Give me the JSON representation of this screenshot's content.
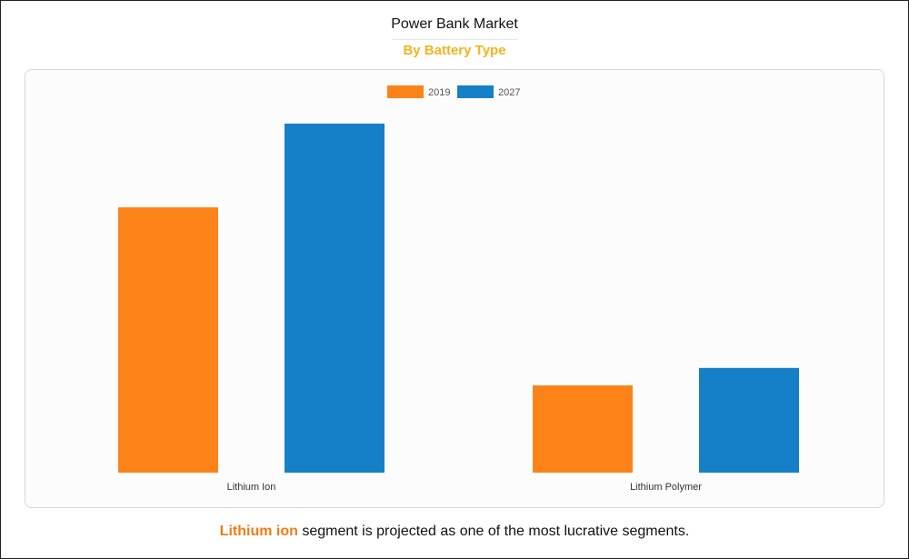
{
  "header": {
    "title": "Power Bank Market",
    "subtitle": "By Battery Type"
  },
  "caption": {
    "highlight": "Lithium ion",
    "rest": " segment is projected as one of the most lucrative segments."
  },
  "colors": {
    "series_2019": "#fd8319",
    "series_2027": "#1580c7",
    "subtitle": "#f3b322",
    "highlight": "#f07c18",
    "axis_text": "#333333"
  },
  "chart_data": {
    "type": "bar",
    "title": "Power Bank Market",
    "subtitle": "By Battery Type",
    "categories": [
      "Lithium Ion",
      "Lithium Polymer"
    ],
    "series": [
      {
        "name": "2019",
        "values": [
          76,
          25
        ]
      },
      {
        "name": "2027",
        "values": [
          100,
          30
        ]
      }
    ],
    "ylim": [
      0,
      100
    ],
    "xlabel": "",
    "ylabel": "",
    "grid": false,
    "legend": "top-center"
  }
}
